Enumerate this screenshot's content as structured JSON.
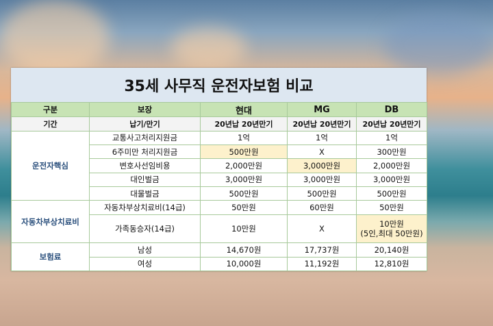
{
  "title": "35세 사무직 운전자보험 비교",
  "header": {
    "category": "구분",
    "coverage": "보장",
    "companies": [
      "현대",
      "MG",
      "DB"
    ]
  },
  "period_row": {
    "label": "기간",
    "coverage": "납기/만기",
    "values": [
      "20년납 20년만기",
      "20년납 20년만기",
      "20년납 20년만기"
    ]
  },
  "groups": [
    {
      "name": "운전자핵심",
      "rows": [
        {
          "coverage": "교통사고처리지원금",
          "values": [
            "1억",
            "1억",
            "1억"
          ]
        },
        {
          "coverage": "6주미만 처리지원금",
          "values": [
            "500만원",
            "X",
            "300만원"
          ]
        },
        {
          "coverage": "변호사선임비용",
          "values": [
            "2,000만원",
            "3,000만원",
            "2,000만원"
          ]
        },
        {
          "coverage": "대인벌금",
          "values": [
            "3,000만원",
            "3,000만원",
            "3,000만원"
          ]
        },
        {
          "coverage": "대물벌금",
          "values": [
            "500만원",
            "500만원",
            "500만원"
          ]
        }
      ]
    },
    {
      "name": "자동차부상치료비",
      "rows": [
        {
          "coverage": "자동차부상치료비(14급)",
          "values": [
            "50만원",
            "60만원",
            "50만원"
          ]
        },
        {
          "coverage": "가족동승자(14급)",
          "values": [
            "10만원",
            "X",
            "10만원"
          ],
          "note": "(5인,최대 50만원)"
        }
      ]
    },
    {
      "name": "보험료",
      "rows": [
        {
          "coverage": "남성",
          "values": [
            "14,670원",
            "17,737원",
            "20,140원"
          ]
        },
        {
          "coverage": "여성",
          "values": [
            "10,000원",
            "11,192원",
            "12,810원"
          ]
        }
      ]
    }
  ],
  "colors": {
    "header_green": "#c7e3b4",
    "title_blue": "#dde7f1",
    "highlight": "#fdf1cc",
    "category_text": "#2a4f7c"
  }
}
